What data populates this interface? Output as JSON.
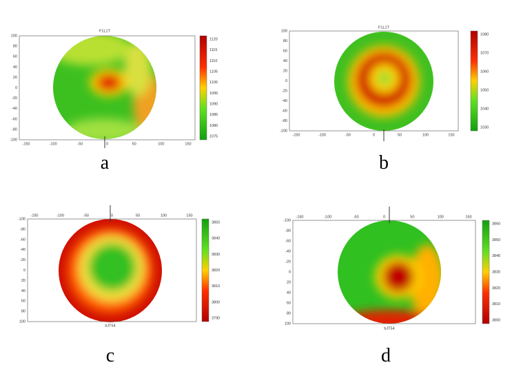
{
  "panels": [
    {
      "title": "F1L1T",
      "caption": "a",
      "xticks": [
        "-150",
        "-100",
        "-50",
        "0",
        "50",
        "100",
        "150"
      ],
      "yticks": [
        "100",
        "80",
        "60",
        "40",
        "20",
        "0",
        "-20",
        "-40",
        "-60",
        "-80",
        "-100"
      ],
      "colorbar": [
        "1120",
        "1115",
        "1110",
        "1105",
        "1100",
        "1095",
        "1090",
        "1085",
        "1080",
        "1075"
      ]
    },
    {
      "title": "F1L1T",
      "caption": "b",
      "xticks": [
        "-150",
        "-100",
        "-50",
        "0",
        "50",
        "100",
        "150"
      ],
      "yticks": [
        "100",
        "80",
        "60",
        "40",
        "20",
        "0",
        "-20",
        "-40",
        "-60",
        "-80",
        "-100"
      ],
      "colorbar": [
        "1080",
        "1070",
        "1060",
        "1050",
        "1040",
        "1030"
      ]
    },
    {
      "title": "bJT54",
      "caption": "c",
      "xticks": [
        "-150",
        "-100",
        "-50",
        "0",
        "50",
        "100",
        "150"
      ],
      "yticks": [
        "-100",
        "-80",
        "-60",
        "-40",
        "-20",
        "0",
        "20",
        "40",
        "60",
        "80",
        "100"
      ],
      "colorbar": [
        "3850",
        "3840",
        "3830",
        "3820",
        "3810",
        "3800",
        "3790"
      ]
    },
    {
      "title": "bJT54",
      "caption": "d",
      "xticks": [
        "-150",
        "-100",
        "-50",
        "0",
        "50",
        "100",
        "150"
      ],
      "yticks": [
        "-100",
        "-80",
        "-60",
        "-40",
        "-20",
        "0",
        "20",
        "40",
        "60",
        "80",
        "100"
      ],
      "colorbar": [
        "3860",
        "3850",
        "3840",
        "3830",
        "3820",
        "3810",
        "3800"
      ]
    }
  ]
}
